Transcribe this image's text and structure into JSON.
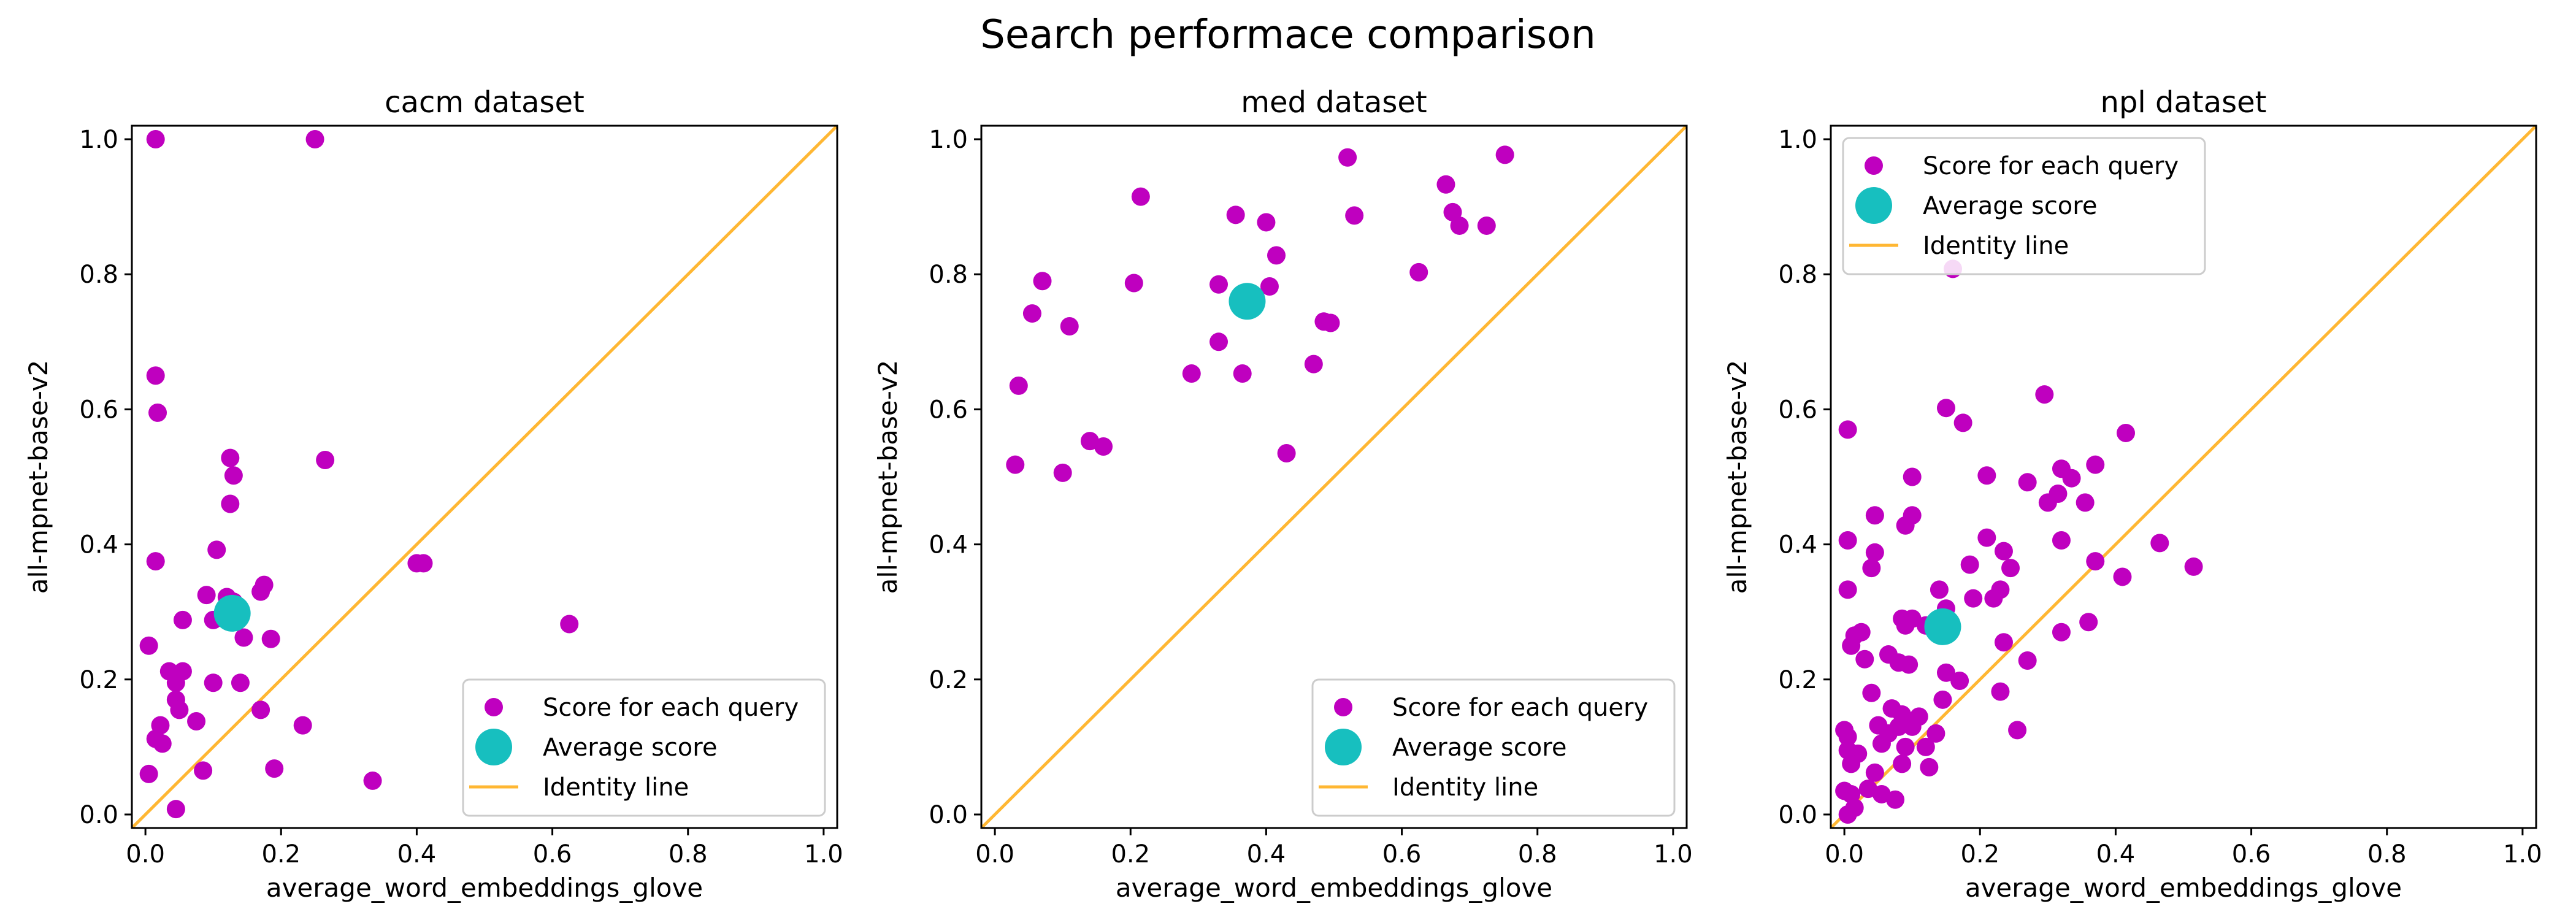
{
  "figure": {
    "title": "Search performace comparison",
    "colors": {
      "query_points": "#bf00bf",
      "average_point": "#17bfbf",
      "identity_line": "#ffb733",
      "axes": "#000000",
      "background": "#ffffff"
    }
  },
  "chart_data": [
    {
      "type": "scatter",
      "title": "cacm dataset",
      "xlabel": "average_word_embeddings_glove",
      "ylabel": "all-mpnet-base-v2",
      "xlim": [
        -0.02,
        1.02
      ],
      "ylim": [
        -0.02,
        1.02
      ],
      "xticks": [
        0.0,
        0.2,
        0.4,
        0.6,
        0.8,
        1.0
      ],
      "yticks": [
        0.0,
        0.2,
        0.4,
        0.6,
        0.8,
        1.0
      ],
      "grid": false,
      "legend_position": "lower-right",
      "legend": [
        "Score for each query",
        "Average score",
        "Identity line"
      ],
      "series": [
        {
          "name": "Score for each query",
          "points": [
            [
              0.015,
              1.0
            ],
            [
              0.25,
              1.0
            ],
            [
              0.015,
              0.65
            ],
            [
              0.018,
              0.595
            ],
            [
              0.015,
              0.375
            ],
            [
              0.125,
              0.528
            ],
            [
              0.13,
              0.502
            ],
            [
              0.125,
              0.46
            ],
            [
              0.265,
              0.525
            ],
            [
              0.105,
              0.392
            ],
            [
              0.4,
              0.372
            ],
            [
              0.41,
              0.372
            ],
            [
              0.625,
              0.282
            ],
            [
              0.09,
              0.325
            ],
            [
              0.12,
              0.322
            ],
            [
              0.175,
              0.34
            ],
            [
              0.17,
              0.33
            ],
            [
              0.13,
              0.315
            ],
            [
              0.055,
              0.288
            ],
            [
              0.1,
              0.288
            ],
            [
              0.145,
              0.262
            ],
            [
              0.185,
              0.26
            ],
            [
              0.005,
              0.25
            ],
            [
              0.035,
              0.212
            ],
            [
              0.055,
              0.212
            ],
            [
              0.045,
              0.195
            ],
            [
              0.1,
              0.195
            ],
            [
              0.14,
              0.195
            ],
            [
              0.045,
              0.17
            ],
            [
              0.05,
              0.155
            ],
            [
              0.17,
              0.155
            ],
            [
              0.075,
              0.138
            ],
            [
              0.022,
              0.132
            ],
            [
              0.232,
              0.132
            ],
            [
              0.015,
              0.112
            ],
            [
              0.025,
              0.105
            ],
            [
              0.005,
              0.06
            ],
            [
              0.085,
              0.065
            ],
            [
              0.19,
              0.068
            ],
            [
              0.335,
              0.05
            ],
            [
              0.045,
              0.008
            ]
          ]
        },
        {
          "name": "Average score",
          "points": [
            [
              0.128,
              0.298
            ]
          ]
        },
        {
          "name": "Identity line",
          "points": [
            [
              -0.02,
              -0.02
            ],
            [
              1.02,
              1.02
            ]
          ]
        }
      ]
    },
    {
      "type": "scatter",
      "title": "med dataset",
      "xlabel": "average_word_embeddings_glove",
      "ylabel": "all-mpnet-base-v2",
      "xlim": [
        -0.02,
        1.02
      ],
      "ylim": [
        -0.02,
        1.02
      ],
      "xticks": [
        0.0,
        0.2,
        0.4,
        0.6,
        0.8,
        1.0
      ],
      "yticks": [
        0.0,
        0.2,
        0.4,
        0.6,
        0.8,
        1.0
      ],
      "grid": false,
      "legend_position": "lower-right",
      "legend": [
        "Score for each query",
        "Average score",
        "Identity line"
      ],
      "series": [
        {
          "name": "Score for each query",
          "points": [
            [
              0.752,
              0.977
            ],
            [
              0.52,
              0.973
            ],
            [
              0.665,
              0.933
            ],
            [
              0.215,
              0.915
            ],
            [
              0.675,
              0.892
            ],
            [
              0.355,
              0.888
            ],
            [
              0.53,
              0.887
            ],
            [
              0.4,
              0.877
            ],
            [
              0.685,
              0.872
            ],
            [
              0.725,
              0.872
            ],
            [
              0.415,
              0.828
            ],
            [
              0.625,
              0.803
            ],
            [
              0.07,
              0.79
            ],
            [
              0.205,
              0.787
            ],
            [
              0.33,
              0.785
            ],
            [
              0.405,
              0.782
            ],
            [
              0.055,
              0.742
            ],
            [
              0.485,
              0.73
            ],
            [
              0.495,
              0.728
            ],
            [
              0.11,
              0.723
            ],
            [
              0.33,
              0.7
            ],
            [
              0.47,
              0.667
            ],
            [
              0.29,
              0.653
            ],
            [
              0.365,
              0.653
            ],
            [
              0.035,
              0.635
            ],
            [
              0.14,
              0.553
            ],
            [
              0.16,
              0.545
            ],
            [
              0.43,
              0.535
            ],
            [
              0.03,
              0.518
            ],
            [
              0.1,
              0.506
            ]
          ]
        },
        {
          "name": "Average score",
          "points": [
            [
              0.372,
              0.76
            ]
          ]
        },
        {
          "name": "Identity line",
          "points": [
            [
              -0.02,
              -0.02
            ],
            [
              1.02,
              1.02
            ]
          ]
        }
      ]
    },
    {
      "type": "scatter",
      "title": "npl dataset",
      "xlabel": "average_word_embeddings_glove",
      "ylabel": "all-mpnet-base-v2",
      "xlim": [
        -0.02,
        1.02
      ],
      "ylim": [
        -0.02,
        1.02
      ],
      "xticks": [
        0.0,
        0.2,
        0.4,
        0.6,
        0.8,
        1.0
      ],
      "yticks": [
        0.0,
        0.2,
        0.4,
        0.6,
        0.8,
        1.0
      ],
      "grid": false,
      "legend_position": "upper-left",
      "legend": [
        "Score for each query",
        "Average score",
        "Identity line"
      ],
      "series": [
        {
          "name": "Score for each query",
          "points": [
            [
              0.16,
              0.808
            ],
            [
              0.295,
              0.622
            ],
            [
              0.15,
              0.602
            ],
            [
              0.175,
              0.58
            ],
            [
              0.005,
              0.57
            ],
            [
              0.415,
              0.565
            ],
            [
              0.37,
              0.518
            ],
            [
              0.32,
              0.512
            ],
            [
              0.335,
              0.498
            ],
            [
              0.21,
              0.502
            ],
            [
              0.1,
              0.5
            ],
            [
              0.27,
              0.492
            ],
            [
              0.315,
              0.475
            ],
            [
              0.3,
              0.462
            ],
            [
              0.355,
              0.462
            ],
            [
              0.045,
              0.443
            ],
            [
              0.1,
              0.443
            ],
            [
              0.09,
              0.428
            ],
            [
              0.21,
              0.41
            ],
            [
              0.32,
              0.406
            ],
            [
              0.465,
              0.402
            ],
            [
              0.005,
              0.406
            ],
            [
              0.235,
              0.39
            ],
            [
              0.045,
              0.388
            ],
            [
              0.185,
              0.37
            ],
            [
              0.37,
              0.375
            ],
            [
              0.41,
              0.352
            ],
            [
              0.04,
              0.365
            ],
            [
              0.245,
              0.365
            ],
            [
              0.005,
              0.333
            ],
            [
              0.14,
              0.333
            ],
            [
              0.23,
              0.333
            ],
            [
              0.515,
              0.367
            ],
            [
              0.19,
              0.32
            ],
            [
              0.22,
              0.32
            ],
            [
              0.15,
              0.305
            ],
            [
              0.085,
              0.29
            ],
            [
              0.1,
              0.29
            ],
            [
              0.09,
              0.28
            ],
            [
              0.12,
              0.28
            ],
            [
              0.36,
              0.285
            ],
            [
              0.025,
              0.27
            ],
            [
              0.015,
              0.265
            ],
            [
              0.01,
              0.25
            ],
            [
              0.32,
              0.27
            ],
            [
              0.235,
              0.255
            ],
            [
              0.065,
              0.237
            ],
            [
              0.27,
              0.228
            ],
            [
              0.03,
              0.23
            ],
            [
              0.08,
              0.225
            ],
            [
              0.095,
              0.222
            ],
            [
              0.15,
              0.21
            ],
            [
              0.17,
              0.198
            ],
            [
              0.145,
              0.17
            ],
            [
              0.23,
              0.182
            ],
            [
              0.04,
              0.18
            ],
            [
              0.07,
              0.157
            ],
            [
              0.085,
              0.148
            ],
            [
              0.11,
              0.145
            ],
            [
              0.05,
              0.132
            ],
            [
              0.08,
              0.13
            ],
            [
              0.1,
              0.13
            ],
            [
              0.135,
              0.12
            ],
            [
              0.065,
              0.12
            ],
            [
              0.255,
              0.125
            ],
            [
              0.0,
              0.125
            ],
            [
              0.005,
              0.115
            ],
            [
              0.055,
              0.105
            ],
            [
              0.09,
              0.1
            ],
            [
              0.12,
              0.1
            ],
            [
              0.005,
              0.095
            ],
            [
              0.02,
              0.09
            ],
            [
              0.01,
              0.075
            ],
            [
              0.045,
              0.062
            ],
            [
              0.125,
              0.07
            ],
            [
              0.085,
              0.075
            ],
            [
              0.055,
              0.03
            ],
            [
              0.035,
              0.038
            ],
            [
              0.075,
              0.022
            ],
            [
              0.0,
              0.035
            ],
            [
              0.01,
              0.03
            ],
            [
              0.015,
              0.01
            ],
            [
              0.005,
              0.0
            ]
          ]
        },
        {
          "name": "Average score",
          "points": [
            [
              0.145,
              0.278
            ]
          ]
        },
        {
          "name": "Identity line",
          "points": [
            [
              -0.02,
              -0.02
            ],
            [
              1.02,
              1.02
            ]
          ]
        }
      ]
    }
  ]
}
